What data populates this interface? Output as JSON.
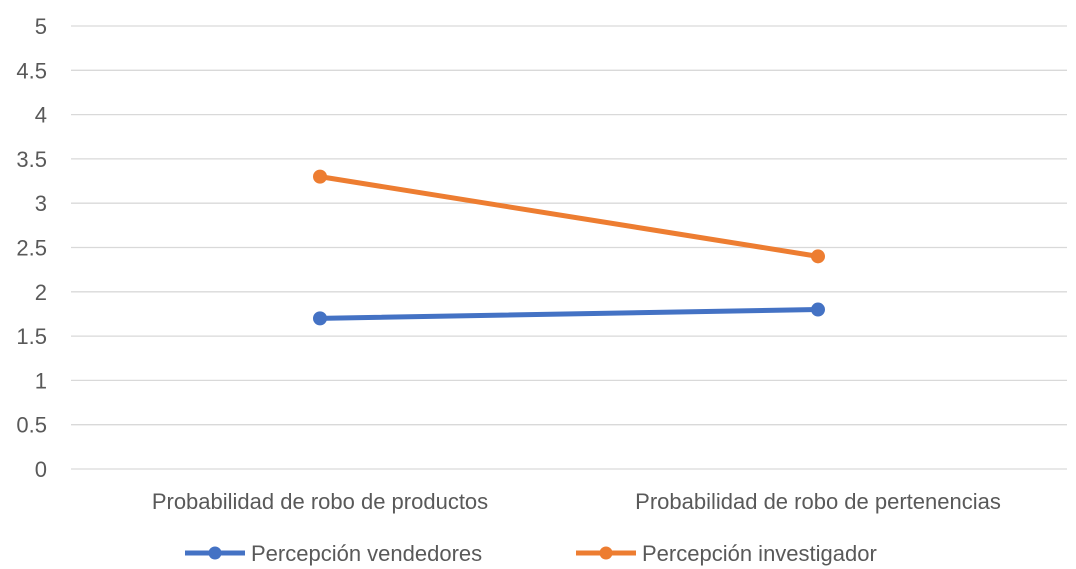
{
  "chart_data": {
    "type": "line",
    "categories": [
      "Probabilidad de robo de productos",
      "Probabilidad de robo de pertenencias"
    ],
    "series": [
      {
        "name": "Percepción vendedores",
        "values": [
          1.7,
          1.8
        ],
        "color": "#4472C4"
      },
      {
        "name": "Percepción investigador",
        "values": [
          3.3,
          2.4
        ],
        "color": "#ED7D31"
      }
    ],
    "ylim": [
      0,
      5
    ],
    "yticks": [
      "0",
      "0.5",
      "1",
      "1.5",
      "2",
      "2.5",
      "3",
      "3.5",
      "4",
      "4.5",
      "5"
    ],
    "grid": true,
    "gridline_color": "#D9D9D9",
    "legend_position": "bottom"
  }
}
